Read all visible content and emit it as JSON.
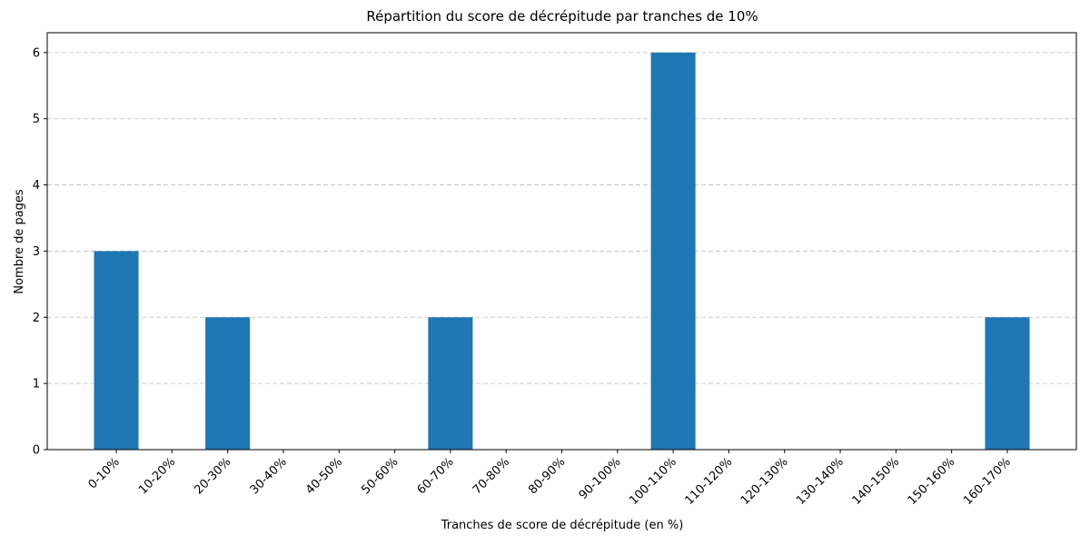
{
  "chart_data": {
    "type": "bar",
    "title": "Répartition du score de décrépitude par tranches de 10%",
    "x_label": "Tranches de score de décrépitude (en %)",
    "y_label": "Nombre de pages",
    "categories": [
      "0-10%",
      "10-20%",
      "20-30%",
      "30-40%",
      "40-50%",
      "50-60%",
      "60-70%",
      "70-80%",
      "80-90%",
      "90-100%",
      "100-110%",
      "110-120%",
      "120-130%",
      "130-140%",
      "140-150%",
      "150-160%",
      "160-170%"
    ],
    "values": [
      3,
      0,
      2,
      0,
      0,
      0,
      2,
      0,
      0,
      0,
      6,
      0,
      0,
      0,
      0,
      0,
      2
    ],
    "color": "#1f77b4",
    "ylim": [
      0,
      6.3
    ],
    "yticks": [
      0,
      1,
      2,
      3,
      4,
      5,
      6
    ],
    "grid": true
  }
}
